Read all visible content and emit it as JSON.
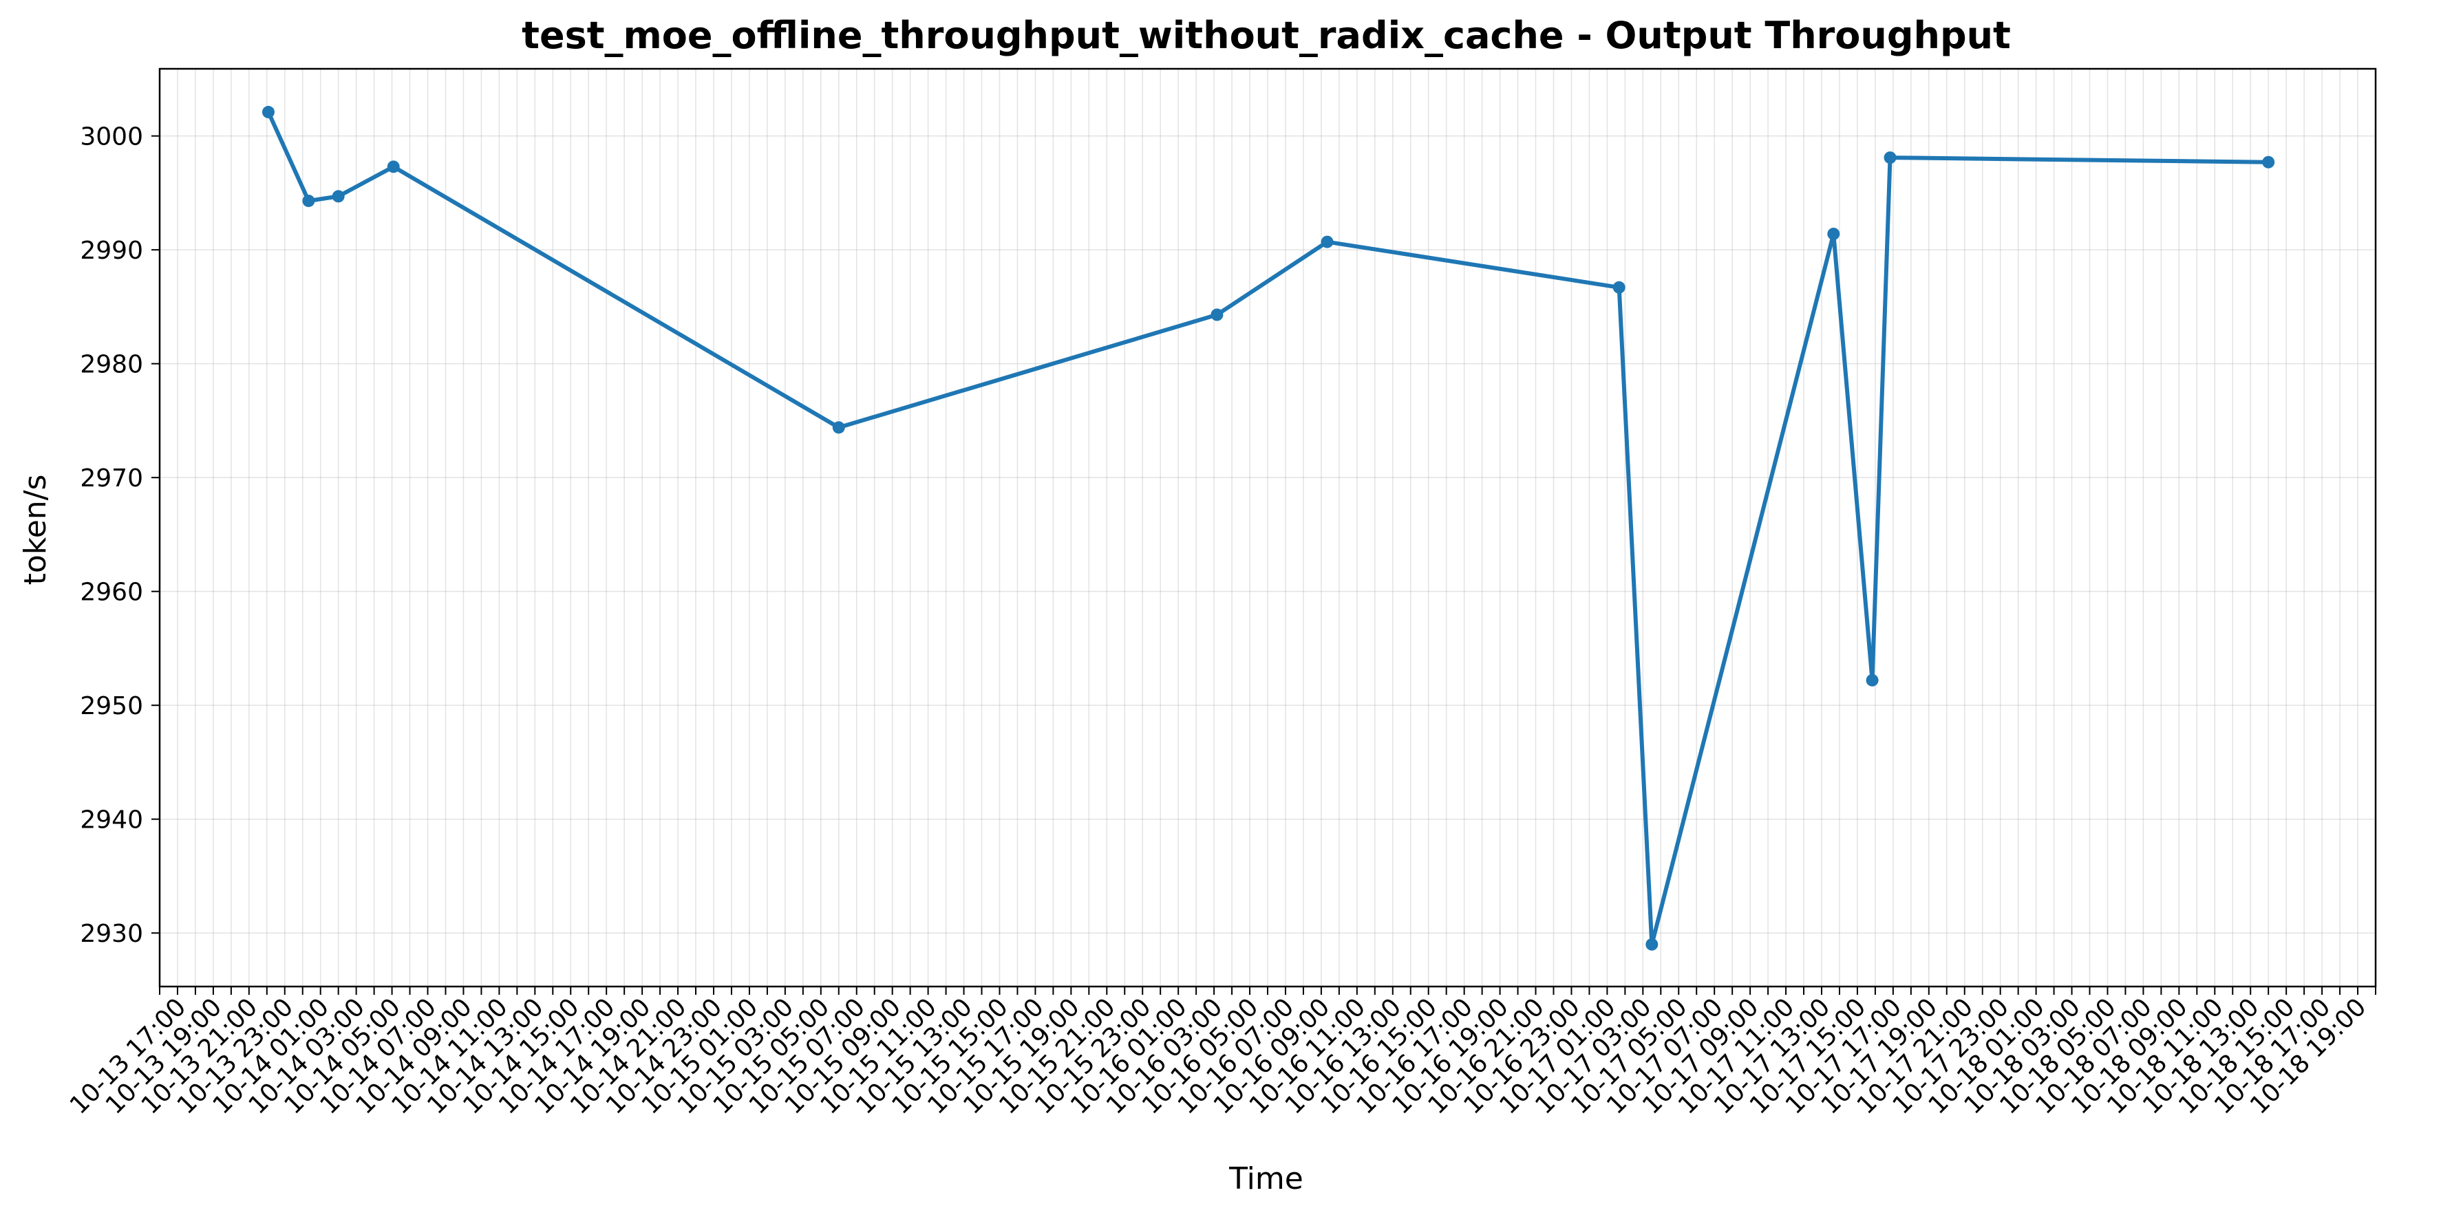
{
  "chart_data": {
    "type": "line",
    "title": "test_moe_offline_throughput_without_radix_cache - Output Throughput",
    "xlabel": "Time",
    "ylabel": "token/s",
    "ylim": [
      2925.3,
      3005.9
    ],
    "xlim": [
      "10-13 16:00",
      "10-18 20:00"
    ],
    "grid": true,
    "legend": "none",
    "colors": {
      "line": "#1f77b4",
      "grid": "#b0b0b0",
      "axes": "#000000"
    },
    "y_ticks": [
      2930,
      2940,
      2950,
      2960,
      2970,
      2980,
      2990,
      3000
    ],
    "x_tick_labels": [
      "10-13 17:00",
      "10-13 19:00",
      "10-13 21:00",
      "10-13 23:00",
      "10-14 01:00",
      "10-14 03:00",
      "10-14 05:00",
      "10-14 07:00",
      "10-14 09:00",
      "10-14 11:00",
      "10-14 13:00",
      "10-14 15:00",
      "10-14 17:00",
      "10-14 19:00",
      "10-14 21:00",
      "10-14 23:00",
      "10-15 01:00",
      "10-15 03:00",
      "10-15 05:00",
      "10-15 07:00",
      "10-15 09:00",
      "10-15 11:00",
      "10-15 13:00",
      "10-15 15:00",
      "10-15 17:00",
      "10-15 19:00",
      "10-15 21:00",
      "10-15 23:00",
      "10-16 01:00",
      "10-16 03:00",
      "10-16 05:00",
      "10-16 07:00",
      "10-16 09:00",
      "10-16 11:00",
      "10-16 13:00",
      "10-16 15:00",
      "10-16 17:00",
      "10-16 19:00",
      "10-16 21:00",
      "10-16 23:00",
      "10-17 01:00",
      "10-17 03:00",
      "10-17 05:00",
      "10-17 07:00",
      "10-17 09:00",
      "10-17 11:00",
      "10-17 13:00",
      "10-17 15:00",
      "10-17 17:00",
      "10-17 19:00",
      "10-17 21:00",
      "10-17 23:00",
      "10-18 01:00",
      "10-18 03:00",
      "10-18 05:00",
      "10-18 07:00",
      "10-18 09:00",
      "10-18 11:00",
      "10-18 13:00",
      "10-18 15:00",
      "10-18 17:00",
      "10-18 19:00"
    ],
    "series": [
      {
        "x": [
          "10-13 22:05",
          "10-14 00:20",
          "10-14 02:00",
          "10-14 05:05",
          "10-15 06:00",
          "10-16 03:10",
          "10-16 09:20",
          "10-17 01:40",
          "10-17 03:30",
          "10-17 13:40",
          "10-17 15:50",
          "10-17 16:50",
          "10-18 14:00"
        ],
        "values": [
          3002.1,
          2994.3,
          2994.7,
          2997.3,
          2974.4,
          2984.3,
          2990.7,
          2986.7,
          2929.0,
          2991.4,
          2952.2,
          2998.1,
          2997.7
        ]
      }
    ]
  }
}
